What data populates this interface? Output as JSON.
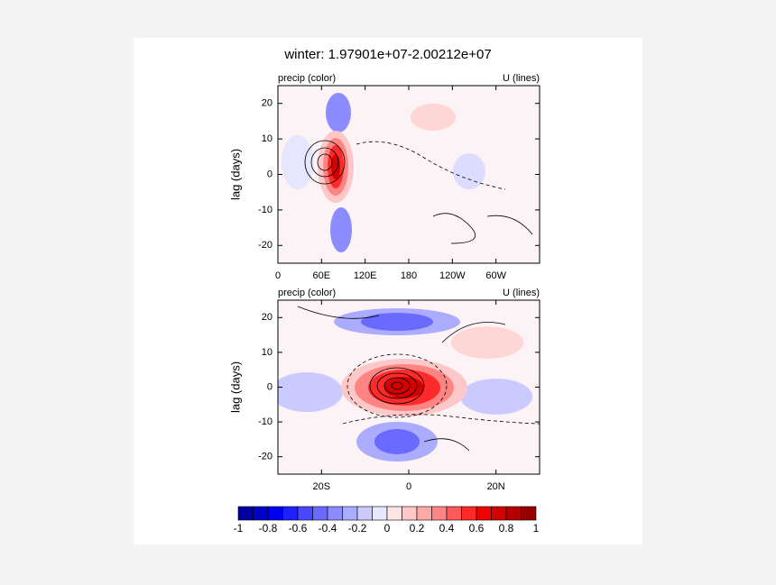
{
  "title": "winter: 1.97901e+07-2.00212e+07",
  "chart_data": [
    {
      "type": "contour",
      "left_label": "precip (color)",
      "right_label": "U (lines)",
      "y_label": "lag (days)",
      "xlim": [
        0,
        360
      ],
      "xticks": [
        0,
        {
          "value": 60,
          "label": "60E"
        },
        {
          "value": 120,
          "label": "120E"
        },
        180,
        {
          "value": 240,
          "label": "120W"
        },
        {
          "value": 300,
          "label": "60W"
        }
      ],
      "ylim": [
        -25,
        25
      ],
      "yticks": [
        20,
        10,
        0,
        -10,
        -20
      ]
    },
    {
      "type": "contour",
      "left_label": "precip (color)",
      "right_label": "U (lines)",
      "y_label": "lag (days)",
      "xlim": [
        -30,
        30
      ],
      "xticks": [
        {
          "value": -20,
          "label": "20S"
        },
        0,
        {
          "value": 20,
          "label": "20N"
        }
      ],
      "ylim": [
        -25,
        25
      ],
      "yticks": [
        20,
        10,
        0,
        -10,
        -20
      ]
    },
    {
      "type": "colorbar",
      "xlim": [
        -1,
        1
      ],
      "levels": [
        -1,
        -0.9,
        -0.8,
        -0.7,
        -0.6,
        -0.5,
        -0.4,
        -0.3,
        -0.2,
        -0.1,
        0,
        0.1,
        0.2,
        0.3,
        0.4,
        0.5,
        0.6,
        0.7,
        0.8,
        0.9,
        1
      ],
      "colors": [
        "#0000a0",
        "#0000c8",
        "#0000f0",
        "#2020ff",
        "#4848ff",
        "#6a6aff",
        "#8c8cff",
        "#acacff",
        "#cacaff",
        "#e6e6ff",
        "#ffe6e6",
        "#ffc8c8",
        "#ffa8a8",
        "#ff8484",
        "#ff5a5a",
        "#ff2a2a",
        "#f00000",
        "#d20000",
        "#b40000",
        "#960000"
      ],
      "xticks": [
        -1,
        -0.8,
        -0.6,
        -0.4,
        -0.2,
        0,
        0.2,
        0.4,
        0.6,
        0.8,
        1
      ]
    }
  ]
}
